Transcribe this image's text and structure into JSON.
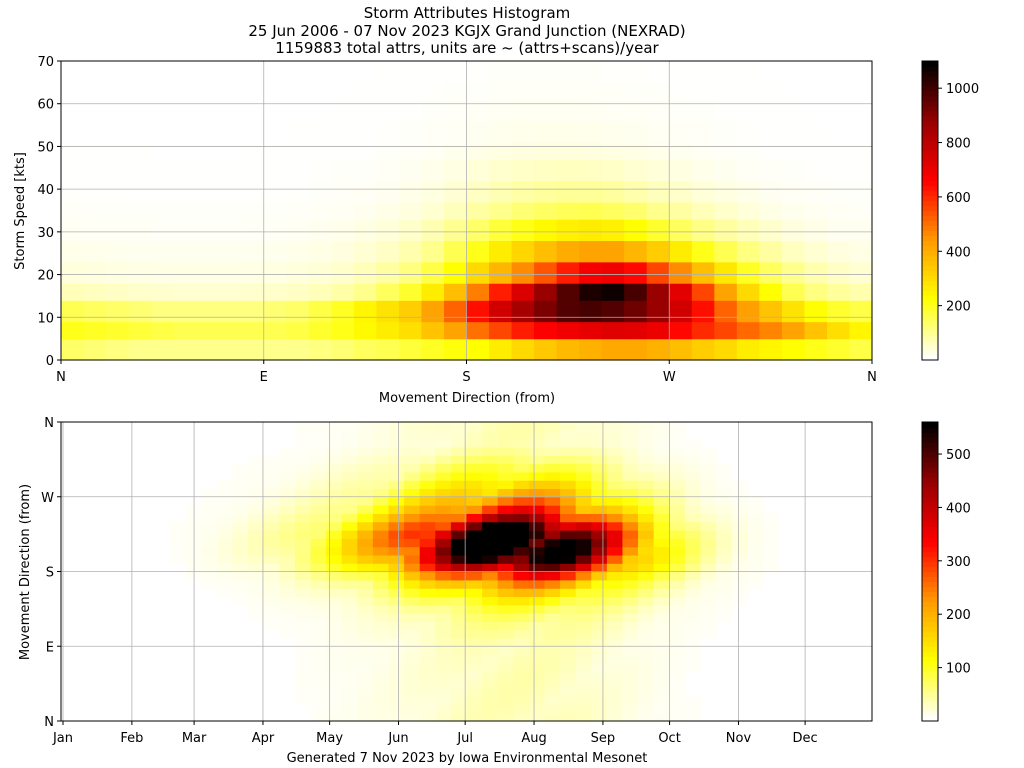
{
  "title_lines": [
    "Storm Attributes Histogram",
    "25 Jun 2006 - 07 Nov 2023 KGJX Grand Junction (NEXRAD)",
    "1159883 total attrs, units are ~ (attrs+scans)/year"
  ],
  "footer": "Generated 7 Nov 2023 by Iowa Environmental Mesonet",
  "colormap": [
    "#ffffff",
    "#ffff00",
    "#ff9a00",
    "#ff0000",
    "#990000",
    "#000000"
  ],
  "chart_data": [
    {
      "type": "heatmap",
      "title": "",
      "xlabel": "Movement Direction (from)",
      "ylabel": "Storm Speed [kts]",
      "x_ticks": [
        "N",
        "E",
        "S",
        "W",
        "N"
      ],
      "xlim": [
        0,
        360
      ],
      "y_ticks": [
        "0",
        "10",
        "20",
        "30",
        "40",
        "50",
        "60",
        "70"
      ],
      "ylim": [
        0,
        70
      ],
      "grid": true,
      "colorbar": {
        "vmin": 0,
        "vmax": 1100,
        "ticks": [
          "200",
          "400",
          "600",
          "800",
          "1000"
        ]
      },
      "x_bins": 36,
      "y_bin_edges_kts": [
        0,
        5,
        9,
        14,
        18,
        23,
        28,
        33,
        37,
        42,
        47,
        51,
        56,
        61,
        65,
        70
      ],
      "values_description": "rows = speed bins (low to high), cols = 10 degree direction bins starting at N",
      "values": [
        [
          130,
          120,
          110,
          100,
          100,
          100,
          100,
          100,
          100,
          100,
          100,
          110,
          120,
          140,
          150,
          170,
          190,
          210,
          220,
          260,
          300,
          340,
          370,
          390,
          410,
          410,
          390,
          360,
          330,
          300,
          260,
          240,
          220,
          200,
          180,
          160
        ],
        [
          200,
          190,
          180,
          170,
          160,
          150,
          150,
          150,
          150,
          150,
          160,
          180,
          200,
          230,
          260,
          290,
          350,
          420,
          500,
          560,
          620,
          660,
          690,
          710,
          730,
          720,
          700,
          650,
          600,
          560,
          510,
          470,
          420,
          350,
          290,
          240
        ],
        [
          150,
          140,
          130,
          120,
          110,
          110,
          110,
          110,
          110,
          120,
          130,
          160,
          190,
          240,
          280,
          330,
          420,
          520,
          640,
          760,
          850,
          920,
          980,
          1000,
          980,
          940,
          880,
          760,
          640,
          520,
          430,
          350,
          280,
          220,
          180,
          160
        ],
        [
          60,
          55,
          50,
          45,
          42,
          40,
          40,
          40,
          42,
          45,
          50,
          60,
          75,
          100,
          140,
          180,
          260,
          360,
          480,
          620,
          740,
          880,
          980,
          1060,
          1080,
          1000,
          880,
          720,
          560,
          420,
          300,
          220,
          150,
          110,
          85,
          70
        ],
        [
          30,
          28,
          26,
          24,
          22,
          22,
          22,
          22,
          24,
          26,
          30,
          36,
          45,
          60,
          80,
          110,
          160,
          220,
          300,
          380,
          460,
          540,
          620,
          680,
          690,
          650,
          560,
          460,
          360,
          270,
          190,
          140,
          100,
          70,
          50,
          40
        ],
        [
          18,
          16,
          15,
          14,
          13,
          13,
          13,
          13,
          14,
          15,
          18,
          22,
          28,
          38,
          50,
          70,
          100,
          150,
          200,
          260,
          310,
          360,
          400,
          420,
          420,
          380,
          330,
          260,
          200,
          150,
          110,
          80,
          55,
          40,
          28,
          22
        ],
        [
          10,
          9,
          8,
          8,
          7,
          7,
          7,
          7,
          8,
          9,
          10,
          13,
          17,
          24,
          32,
          45,
          65,
          95,
          130,
          170,
          200,
          230,
          250,
          260,
          250,
          220,
          180,
          140,
          105,
          80,
          60,
          42,
          28,
          20,
          14,
          12
        ],
        [
          6,
          5,
          5,
          4,
          4,
          4,
          4,
          4,
          5,
          5,
          6,
          8,
          10,
          14,
          20,
          28,
          40,
          58,
          80,
          100,
          120,
          135,
          145,
          150,
          140,
          125,
          100,
          80,
          60,
          45,
          32,
          22,
          15,
          11,
          8,
          7
        ],
        [
          3,
          3,
          3,
          2,
          2,
          2,
          2,
          2,
          2,
          3,
          3,
          4,
          6,
          8,
          12,
          18,
          26,
          38,
          52,
          66,
          78,
          86,
          90,
          90,
          84,
          72,
          58,
          46,
          34,
          25,
          18,
          12,
          8,
          6,
          4,
          4
        ],
        [
          2,
          2,
          1,
          1,
          1,
          1,
          1,
          1,
          1,
          2,
          2,
          3,
          4,
          5,
          8,
          12,
          17,
          24,
          34,
          42,
          48,
          52,
          54,
          52,
          48,
          40,
          32,
          25,
          18,
          13,
          9,
          6,
          4,
          3,
          2,
          2
        ],
        [
          1,
          1,
          1,
          1,
          0,
          0,
          0,
          0,
          1,
          1,
          1,
          2,
          2,
          3,
          5,
          7,
          10,
          15,
          20,
          25,
          28,
          30,
          30,
          28,
          26,
          22,
          18,
          14,
          10,
          7,
          5,
          3,
          2,
          1,
          1,
          1
        ],
        [
          0,
          0,
          0,
          0,
          0,
          0,
          0,
          0,
          0,
          0,
          1,
          1,
          1,
          2,
          3,
          4,
          6,
          9,
          12,
          15,
          17,
          18,
          18,
          17,
          15,
          13,
          10,
          8,
          6,
          4,
          3,
          2,
          1,
          1,
          0,
          0
        ],
        [
          0,
          0,
          0,
          0,
          0,
          0,
          0,
          0,
          0,
          0,
          0,
          0,
          1,
          1,
          2,
          3,
          4,
          6,
          8,
          10,
          11,
          11,
          11,
          10,
          9,
          8,
          6,
          5,
          4,
          3,
          2,
          1,
          1,
          0,
          0,
          0
        ],
        [
          0,
          0,
          0,
          0,
          0,
          0,
          0,
          0,
          0,
          0,
          0,
          0,
          0,
          1,
          1,
          2,
          3,
          4,
          5,
          6,
          7,
          7,
          7,
          6,
          6,
          5,
          4,
          3,
          2,
          2,
          1,
          1,
          0,
          0,
          0,
          0
        ],
        [
          0,
          0,
          0,
          0,
          0,
          0,
          0,
          0,
          0,
          0,
          0,
          0,
          0,
          0,
          1,
          1,
          2,
          2,
          3,
          4,
          4,
          4,
          4,
          4,
          3,
          3,
          2,
          2,
          1,
          1,
          1,
          0,
          0,
          0,
          0,
          0
        ]
      ]
    },
    {
      "type": "heatmap",
      "title": "",
      "xlabel": "",
      "ylabel": "Movement Direction (from)",
      "x_ticks": [
        "Jan",
        "Feb",
        "Mar",
        "Apr",
        "May",
        "Jun",
        "Jul",
        "Aug",
        "Sep",
        "Oct",
        "Nov",
        "Dec"
      ],
      "y_ticks": [
        "N",
        "E",
        "S",
        "W",
        "N"
      ],
      "ylim": [
        0,
        360
      ],
      "grid": true,
      "colorbar": {
        "vmin": 0,
        "vmax": 560,
        "ticks": [
          "100",
          "200",
          "300",
          "400",
          "500"
        ]
      },
      "x_bins": 52,
      "y_bins": 36,
      "values_description": "weekly bins (Jan to Dec) x 10 degree direction bins (N at bottom, increasing upward)",
      "center_week": 29.5,
      "week_sigma": 5,
      "dir_profile": [
        0.05,
        0.05,
        0.05,
        0.05,
        0.05,
        0.05,
        0.05,
        0.05,
        0.05,
        0.06,
        0.07,
        0.08,
        0.1,
        0.13,
        0.18,
        0.25,
        0.35,
        0.5,
        0.72,
        0.88,
        0.98,
        1.0,
        0.95,
        0.8,
        0.62,
        0.48,
        0.38,
        0.3,
        0.24,
        0.18,
        0.14,
        0.1,
        0.07,
        0.05,
        0.05,
        0.05
      ],
      "peak": 540
    }
  ]
}
